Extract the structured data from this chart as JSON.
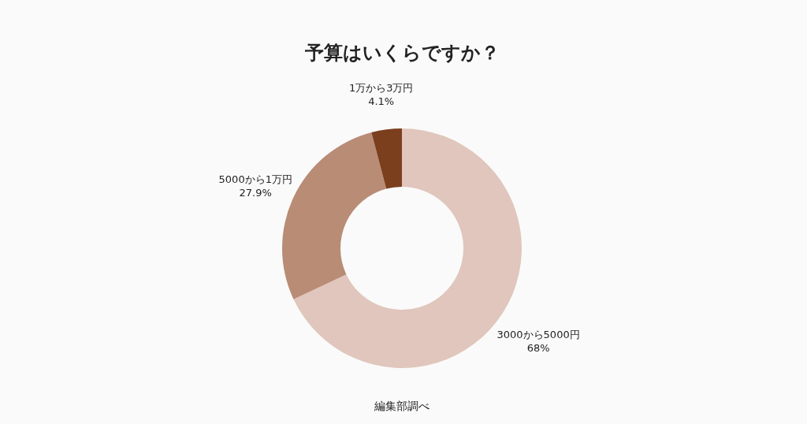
{
  "chart_data": {
    "type": "donut",
    "title": "予算はいくらですか？",
    "categories": [
      "3000から5000円",
      "5000から1万円",
      "1万から3万円"
    ],
    "values": [
      68,
      27.9,
      4.1
    ],
    "colors": [
      "#e0c6bc",
      "#b98c76",
      "#7b3f1e"
    ],
    "value_labels": [
      "68%",
      "27.9%",
      "4.1%"
    ],
    "annotations": [
      "編集部調べ"
    ]
  }
}
